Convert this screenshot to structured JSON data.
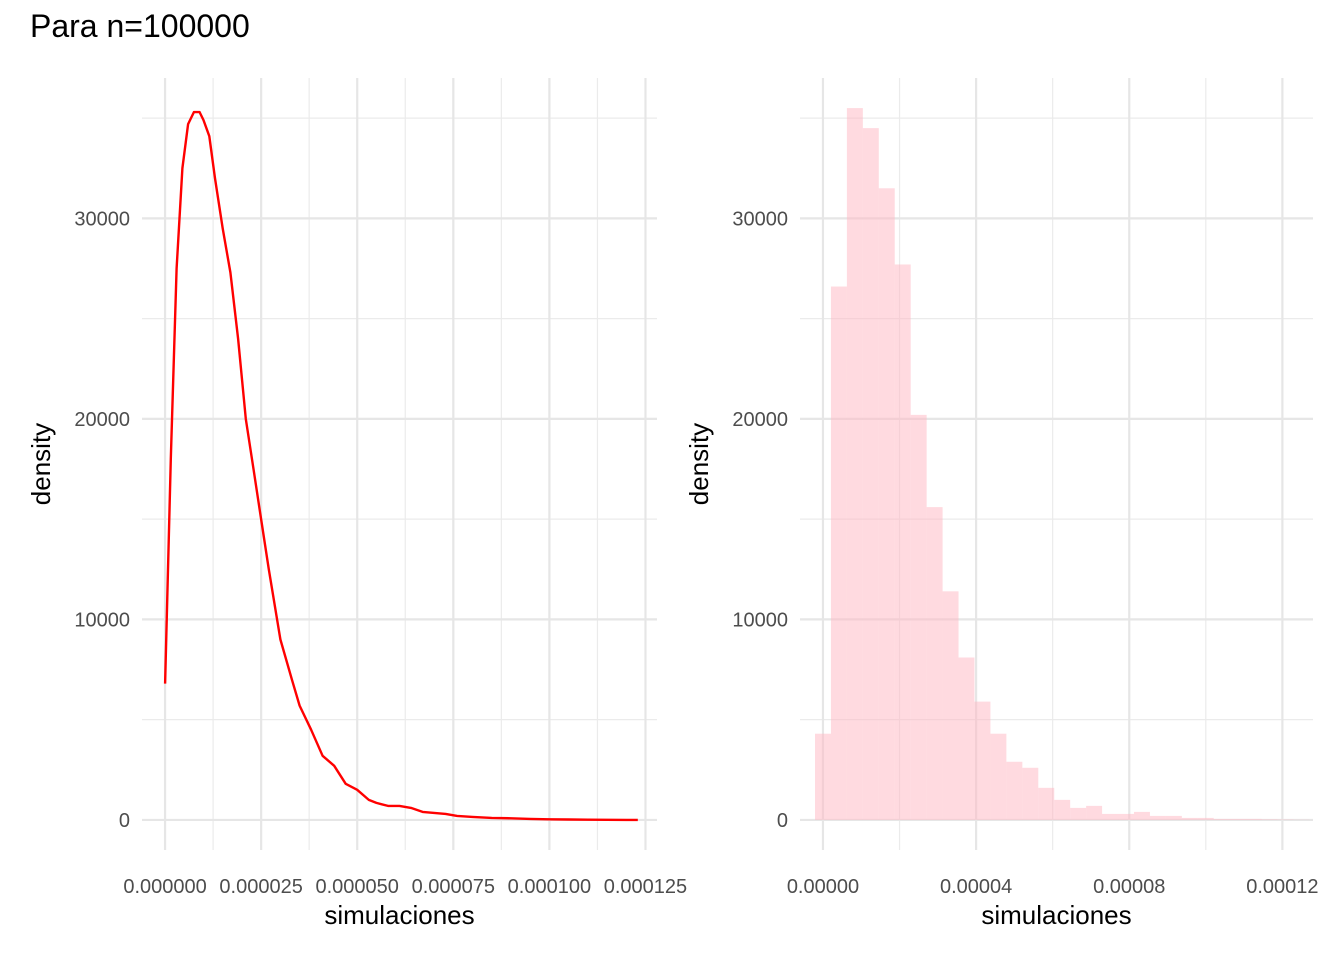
{
  "title": "Para n=100000",
  "chart_data": [
    {
      "type": "line",
      "xlabel": "simulaciones",
      "ylabel": "density",
      "xlim": [
        -6e-06,
        0.000128
      ],
      "ylim": [
        -1500,
        37000
      ],
      "x_ticks": [
        0,
        2.5e-05,
        5e-05,
        7.5e-05,
        0.0001,
        0.000125
      ],
      "x_tick_labels": [
        "0.000000",
        "0.000025",
        "0.000050",
        "0.000075",
        "0.000100",
        "0.000125"
      ],
      "y_ticks": [
        0,
        10000,
        20000,
        30000
      ],
      "y_tick_labels": [
        "0",
        "10000",
        "20000",
        "30000"
      ],
      "grid": true,
      "color": "#ff0000",
      "x": [
        0.0,
        1.5e-06,
        3e-06,
        4.5e-06,
        6e-06,
        7.5e-06,
        9e-06,
        1e-05,
        1.15e-05,
        1.3e-05,
        1.5e-05,
        1.7e-05,
        1.9e-05,
        2.1e-05,
        2.3e-05,
        2.5e-05,
        2.7e-05,
        3e-05,
        3.3e-05,
        3.5e-05,
        3.8e-05,
        4.1e-05,
        4.4e-05,
        4.7e-05,
        5e-05,
        5.3e-05,
        5.5e-05,
        5.8e-05,
        6.1e-05,
        6.4e-05,
        6.7e-05,
        7e-05,
        7.3e-05,
        7.6e-05,
        8e-05,
        8.5e-05,
        9e-05,
        9.5e-05,
        0.0001,
        0.000105,
        0.00011,
        0.000115,
        0.00012,
        0.000123
      ],
      "y": [
        6800,
        18000,
        27500,
        32500,
        34700,
        35300,
        35300,
        34900,
        34100,
        32000,
        29500,
        27300,
        24000,
        20000,
        17500,
        15000,
        12500,
        9000,
        7000,
        5700,
        4500,
        3200,
        2700,
        1800,
        1500,
        1000,
        850,
        700,
        700,
        600,
        400,
        350,
        300,
        200,
        150,
        100,
        80,
        50,
        30,
        20,
        10,
        5,
        0,
        0
      ]
    },
    {
      "type": "bar",
      "xlabel": "simulaciones",
      "ylabel": "density",
      "xlim": [
        -6e-06,
        0.000128
      ],
      "ylim": [
        -1500,
        37000
      ],
      "x_ticks": [
        0,
        4e-05,
        8e-05,
        0.00012
      ],
      "x_tick_labels": [
        "0.00000",
        "0.00004",
        "0.00008",
        "0.00012"
      ],
      "y_ticks": [
        0,
        10000,
        20000,
        30000
      ],
      "y_tick_labels": [
        "0",
        "10000",
        "20000",
        "30000"
      ],
      "grid": true,
      "color": "#ffb6c1",
      "bin_width": 4.166e-06,
      "bin_centers": [
        0.0,
        4.166e-06,
        8.332e-06,
        1.2498e-05,
        1.6664e-05,
        2.083e-05,
        2.4996e-05,
        2.9162e-05,
        3.3328e-05,
        3.7494e-05,
        4.166e-05,
        4.5826e-05,
        4.9992e-05,
        5.4158e-05,
        5.8324e-05,
        6.249e-05,
        6.6656e-05,
        7.0822e-05,
        7.4988e-05,
        7.9154e-05,
        8.332e-05,
        8.7486e-05,
        9.1652e-05,
        9.5818e-05,
        9.9984e-05,
        0.00010415,
        0.000108316,
        0.000112482,
        0.000116648,
        0.000120814,
        0.00012498
      ],
      "values": [
        4300,
        26600,
        35500,
        34500,
        31500,
        27700,
        20200,
        15600,
        11400,
        8100,
        5900,
        4300,
        2900,
        2600,
        1600,
        1000,
        600,
        700,
        300,
        300,
        400,
        200,
        200,
        100,
        100,
        50,
        50,
        50,
        30,
        20,
        10
      ]
    }
  ]
}
